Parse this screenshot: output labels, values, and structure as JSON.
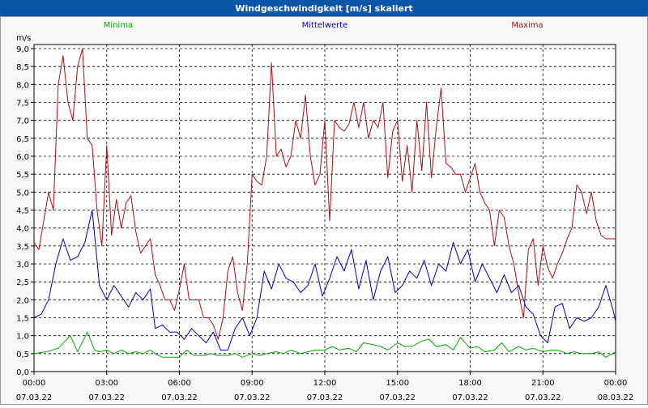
{
  "window": {
    "title": "Windgeschwindigkeit [m/s] skaliert"
  },
  "colors": {
    "titlebar": "#0b56a8",
    "title_text": "#ffffff",
    "background": "#f8f8f8",
    "minima": "#00aa00",
    "mittel": "#0000bb",
    "maxima": "#aa1111",
    "grid": "#000000"
  },
  "chart_data": {
    "type": "line",
    "title": "Windgeschwindigkeit [m/s] skaliert",
    "ylabel": "m/s",
    "ylim": [
      0,
      9
    ],
    "grid": true,
    "legend_placement": "top",
    "yticks": [
      "0,0",
      "0,5",
      "1,0",
      "1,5",
      "2,0",
      "2,5",
      "3,0",
      "3,5",
      "4,0",
      "4,5",
      "5,0",
      "5,5",
      "6,0",
      "6,5",
      "7,0",
      "7,5",
      "8,0",
      "8,5",
      "9,0"
    ],
    "xticks": [
      {
        "time": "00:00",
        "date": "07.03.22"
      },
      {
        "time": "03:00",
        "date": "07.03.22"
      },
      {
        "time": "06:00",
        "date": "07.03.22"
      },
      {
        "time": "09:00",
        "date": "07.03.22"
      },
      {
        "time": "12:00",
        "date": "07.03.22"
      },
      {
        "time": "15:00",
        "date": "07.03.22"
      },
      {
        "time": "18:00",
        "date": "07.03.22"
      },
      {
        "time": "21:00",
        "date": "07.03.22"
      },
      {
        "time": "00:00",
        "date": "08.03.22"
      }
    ],
    "x_hours_start": 0,
    "x_hours_end": 24,
    "series": [
      {
        "name": "Minima",
        "x": [
          0,
          0.5,
          1,
          1.5,
          1.8,
          2.2,
          2.5,
          2.7,
          3,
          3.3,
          3.6,
          3.9,
          4.2,
          4.5,
          4.8,
          5,
          5.3,
          5.6,
          6,
          6.3,
          6.6,
          7,
          7.3,
          7.6,
          8,
          8.3,
          8.6,
          9,
          9.3,
          9.6,
          10,
          10.3,
          10.6,
          11,
          11.3,
          11.6,
          12,
          12.3,
          12.6,
          13,
          13.3,
          13.6,
          14,
          14.3,
          14.6,
          15,
          15.3,
          15.6,
          16,
          16.3,
          16.6,
          17,
          17.3,
          17.6,
          18,
          18.3,
          18.6,
          19,
          19.3,
          19.6,
          20,
          20.3,
          20.6,
          21,
          21.3,
          21.6,
          22,
          22.3,
          22.6,
          23,
          23.3,
          23.6,
          24
        ],
        "values": [
          0.5,
          0.55,
          0.65,
          1.0,
          0.55,
          1.1,
          0.6,
          0.55,
          0.6,
          0.5,
          0.6,
          0.5,
          0.55,
          0.5,
          0.6,
          0.5,
          0.4,
          0.4,
          0.4,
          0.6,
          0.45,
          0.45,
          0.5,
          0.45,
          0.45,
          0.5,
          0.4,
          0.5,
          0.45,
          0.5,
          0.55,
          0.5,
          0.6,
          0.5,
          0.55,
          0.6,
          0.6,
          0.7,
          0.6,
          0.65,
          0.55,
          0.8,
          0.75,
          0.7,
          0.6,
          0.8,
          0.7,
          0.7,
          0.85,
          0.9,
          0.7,
          0.75,
          0.6,
          0.95,
          0.65,
          0.7,
          0.55,
          0.6,
          0.8,
          0.55,
          0.7,
          0.6,
          0.65,
          0.55,
          0.6,
          0.6,
          0.5,
          0.55,
          0.5,
          0.5,
          0.55,
          0.4,
          0.55
        ]
      },
      {
        "name": "Mittelwerte",
        "x": [
          0,
          0.3,
          0.6,
          0.9,
          1.2,
          1.5,
          1.8,
          2.1,
          2.4,
          2.7,
          3,
          3.3,
          3.6,
          3.9,
          4.2,
          4.5,
          4.8,
          5,
          5.3,
          5.6,
          5.9,
          6.2,
          6.5,
          6.8,
          7.1,
          7.4,
          7.7,
          8,
          8.3,
          8.6,
          8.9,
          9.2,
          9.5,
          9.8,
          10.1,
          10.4,
          10.7,
          11,
          11.3,
          11.6,
          11.9,
          12.2,
          12.5,
          12.8,
          13.1,
          13.4,
          13.7,
          14,
          14.3,
          14.6,
          14.9,
          15.2,
          15.5,
          15.8,
          16.1,
          16.4,
          16.7,
          17,
          17.3,
          17.6,
          17.9,
          18.2,
          18.5,
          18.8,
          19.1,
          19.4,
          19.7,
          20,
          20.3,
          20.6,
          20.9,
          21.2,
          21.5,
          21.8,
          22.1,
          22.4,
          22.7,
          23,
          23.3,
          23.6,
          23.9,
          24
        ],
        "values": [
          1.5,
          1.6,
          2.0,
          3.0,
          3.7,
          3.1,
          3.2,
          3.6,
          4.5,
          2.4,
          2.0,
          2.4,
          2.1,
          1.8,
          2.2,
          2.0,
          2.3,
          1.2,
          1.3,
          1.1,
          1.1,
          0.9,
          1.2,
          1.0,
          0.8,
          1.1,
          0.6,
          0.6,
          1.2,
          1.5,
          1.0,
          1.5,
          2.8,
          2.3,
          3.0,
          2.6,
          2.5,
          2.2,
          2.4,
          3.0,
          2.1,
          2.6,
          3.2,
          2.8,
          3.4,
          2.3,
          3.1,
          2.0,
          2.8,
          3.2,
          2.2,
          2.4,
          2.8,
          2.6,
          3.1,
          2.4,
          3.0,
          2.8,
          3.6,
          3.0,
          3.4,
          2.5,
          3.0,
          2.6,
          2.2,
          2.7,
          2.2,
          2.4,
          1.8,
          1.6,
          1.0,
          0.8,
          1.8,
          1.9,
          1.2,
          1.5,
          1.4,
          1.5,
          1.8,
          2.4,
          1.7,
          1.4
        ]
      },
      {
        "name": "Maxima",
        "x": [
          0,
          0.2,
          0.4,
          0.6,
          0.8,
          1.0,
          1.2,
          1.4,
          1.6,
          1.8,
          2.0,
          2.2,
          2.4,
          2.6,
          2.8,
          3.0,
          3.2,
          3.4,
          3.6,
          3.8,
          4.0,
          4.2,
          4.4,
          4.6,
          4.8,
          5.0,
          5.2,
          5.4,
          5.6,
          5.8,
          6.0,
          6.2,
          6.4,
          6.6,
          6.8,
          7.0,
          7.2,
          7.4,
          7.6,
          7.8,
          8.0,
          8.2,
          8.4,
          8.6,
          8.8,
          9.0,
          9.2,
          9.4,
          9.6,
          9.8,
          10.0,
          10.2,
          10.4,
          10.6,
          10.8,
          11.0,
          11.2,
          11.4,
          11.6,
          11.8,
          12.0,
          12.2,
          12.4,
          12.6,
          12.8,
          13.0,
          13.2,
          13.4,
          13.6,
          13.8,
          14.0,
          14.2,
          14.4,
          14.6,
          14.8,
          15.0,
          15.2,
          15.4,
          15.6,
          15.8,
          16.0,
          16.2,
          16.4,
          16.6,
          16.8,
          17.0,
          17.2,
          17.4,
          17.6,
          17.8,
          18.0,
          18.2,
          18.4,
          18.6,
          18.8,
          19.0,
          19.2,
          19.4,
          19.6,
          19.8,
          20.0,
          20.2,
          20.4,
          20.6,
          20.8,
          21.0,
          21.2,
          21.4,
          21.6,
          21.8,
          22.0,
          22.2,
          22.4,
          22.6,
          22.8,
          23.0,
          23.2,
          23.4,
          23.6,
          23.8,
          24.0
        ],
        "values": [
          3.6,
          3.4,
          4.2,
          5.0,
          4.5,
          8.0,
          8.8,
          7.5,
          7.0,
          8.5,
          9.0,
          6.5,
          6.3,
          4.5,
          3.5,
          6.3,
          3.8,
          4.8,
          4.0,
          4.7,
          4.9,
          3.9,
          3.3,
          3.5,
          3.7,
          2.7,
          2.4,
          2.0,
          2.0,
          1.7,
          2.3,
          3.0,
          2.0,
          2.0,
          2.0,
          1.5,
          1.5,
          1.3,
          0.9,
          1.5,
          2.8,
          3.2,
          2.2,
          1.7,
          3.0,
          5.5,
          5.3,
          5.2,
          6.0,
          8.6,
          6.0,
          6.2,
          5.7,
          6.0,
          7.0,
          6.5,
          7.7,
          6.0,
          5.2,
          5.5,
          7.0,
          4.2,
          7.0,
          6.8,
          6.7,
          6.9,
          7.5,
          6.8,
          7.5,
          6.5,
          7.0,
          6.8,
          7.5,
          5.4,
          6.7,
          7.0,
          5.3,
          6.3,
          5.0,
          7.0,
          5.6,
          7.5,
          5.4,
          6.8,
          7.9,
          5.8,
          5.7,
          5.5,
          5.5,
          5.0,
          5.4,
          5.8,
          5.0,
          4.7,
          4.5,
          3.5,
          4.5,
          4.3,
          3.5,
          3.0,
          2.2,
          1.5,
          3.4,
          3.7,
          2.4,
          3.5,
          2.9,
          2.6,
          3.0,
          3.3,
          3.7,
          4.0,
          5.2,
          5.0,
          4.4,
          5.0,
          4.2,
          3.8,
          3.7,
          3.7,
          3.7
        ]
      }
    ]
  }
}
